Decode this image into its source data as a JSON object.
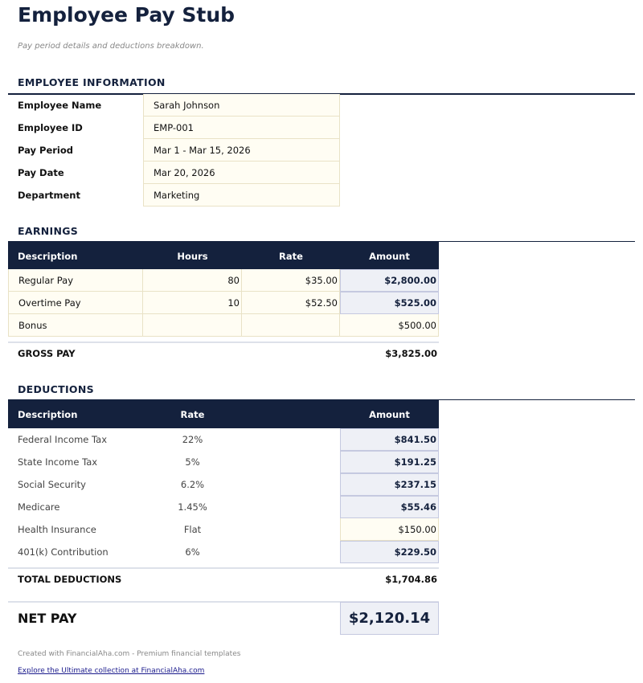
{
  "title": "Employee Pay Stub",
  "subtitle": "Pay period details and deductions breakdown.",
  "employee": {
    "heading": "EMPLOYEE INFORMATION",
    "rows": [
      {
        "label": "Employee Name",
        "value": "Sarah Johnson"
      },
      {
        "label": "Employee ID",
        "value": "EMP-001"
      },
      {
        "label": "Pay Period",
        "value": "Mar 1 - Mar 15, 2026"
      },
      {
        "label": "Pay Date",
        "value": "Mar 20, 2026"
      },
      {
        "label": "Department",
        "value": "Marketing"
      }
    ]
  },
  "earnings": {
    "heading": "EARNINGS",
    "columns": [
      "Description",
      "Hours",
      "Rate",
      "Amount"
    ],
    "rows": [
      {
        "description": "Regular Pay",
        "hours": "80",
        "rate": "$35.00",
        "amount": "$2,800.00"
      },
      {
        "description": "Overtime Pay",
        "hours": "10",
        "rate": "$52.50",
        "amount": "$525.00"
      },
      {
        "description": "Bonus",
        "hours": "",
        "rate": "",
        "amount": "$500.00"
      }
    ],
    "total_label": "GROSS PAY",
    "total": "$3,825.00"
  },
  "deductions": {
    "heading": "DEDUCTIONS",
    "columns": [
      "Description",
      "Rate",
      "Amount"
    ],
    "rows": [
      {
        "description": "Federal Income Tax",
        "rate": "22%",
        "amount": "$841.50"
      },
      {
        "description": "State Income Tax",
        "rate": "5%",
        "amount": "$191.25"
      },
      {
        "description": "Social Security",
        "rate": "6.2%",
        "amount": "$237.15"
      },
      {
        "description": "Medicare",
        "rate": "1.45%",
        "amount": "$55.46"
      },
      {
        "description": "Health Insurance",
        "rate": "Flat",
        "amount": "$150.00"
      },
      {
        "description": "401(k) Contribution",
        "rate": "6%",
        "amount": "$229.50"
      }
    ],
    "total_label": "TOTAL DEDUCTIONS",
    "total": "$1,704.86"
  },
  "net_pay": {
    "label": "NET PAY",
    "value": "$2,120.14"
  },
  "footer": {
    "credit": "Created with FinancialAha.com - Premium financial templates",
    "link": "Explore the Ultimate collection at FinancialAha.com"
  },
  "colors": {
    "navy": "#14213d",
    "input_bg": "#fffdf3",
    "calc_bg": "#eef0f6"
  }
}
